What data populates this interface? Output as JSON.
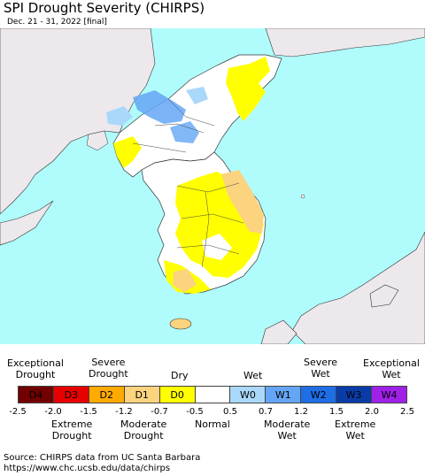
{
  "title": "SPI Drought Severity (CHIRPS)",
  "subtitle": "Dec. 21 - 31, 2022 [final]",
  "legend": {
    "top_labels": [
      "Exceptional\nDrought",
      "Severe\nDrought",
      "Dry",
      "Wet",
      "Severe\nWet",
      "Exceptional\nWet"
    ],
    "bottom_labels": [
      "Extreme\nDrought",
      "Moderate\nDrought",
      "Normal",
      "Moderate\nWet",
      "Extreme\nWet"
    ],
    "categories": [
      {
        "code": "D4",
        "color": "#730000"
      },
      {
        "code": "D3",
        "color": "#e60000"
      },
      {
        "code": "D2",
        "color": "#ffaa00"
      },
      {
        "code": "D1",
        "color": "#fcd37f"
      },
      {
        "code": "D0",
        "color": "#ffff00"
      },
      {
        "code": "",
        "color": "#ffffff"
      },
      {
        "code": "W0",
        "color": "#aad8fa"
      },
      {
        "code": "W1",
        "color": "#64a6f5"
      },
      {
        "code": "W2",
        "color": "#1e6ee6"
      },
      {
        "code": "W3",
        "color": "#0a3ca8"
      },
      {
        "code": "W4",
        "color": "#a020e8"
      }
    ],
    "ticks": [
      "-2.5",
      "-2.0",
      "-1.5",
      "-1.2",
      "-0.7",
      "-0.5",
      "0.5",
      "0.7",
      "1.2",
      "1.5",
      "2.0",
      "2.5"
    ]
  },
  "source": {
    "line1": "Source: CHIRPS data from UC Santa Barbara",
    "line2": "https://www.chc.ucsb.edu/data/chirps"
  },
  "colors": {
    "ocean": "#b0fcfc",
    "outside_land": "#ece8ec",
    "land": "#ffffff"
  }
}
